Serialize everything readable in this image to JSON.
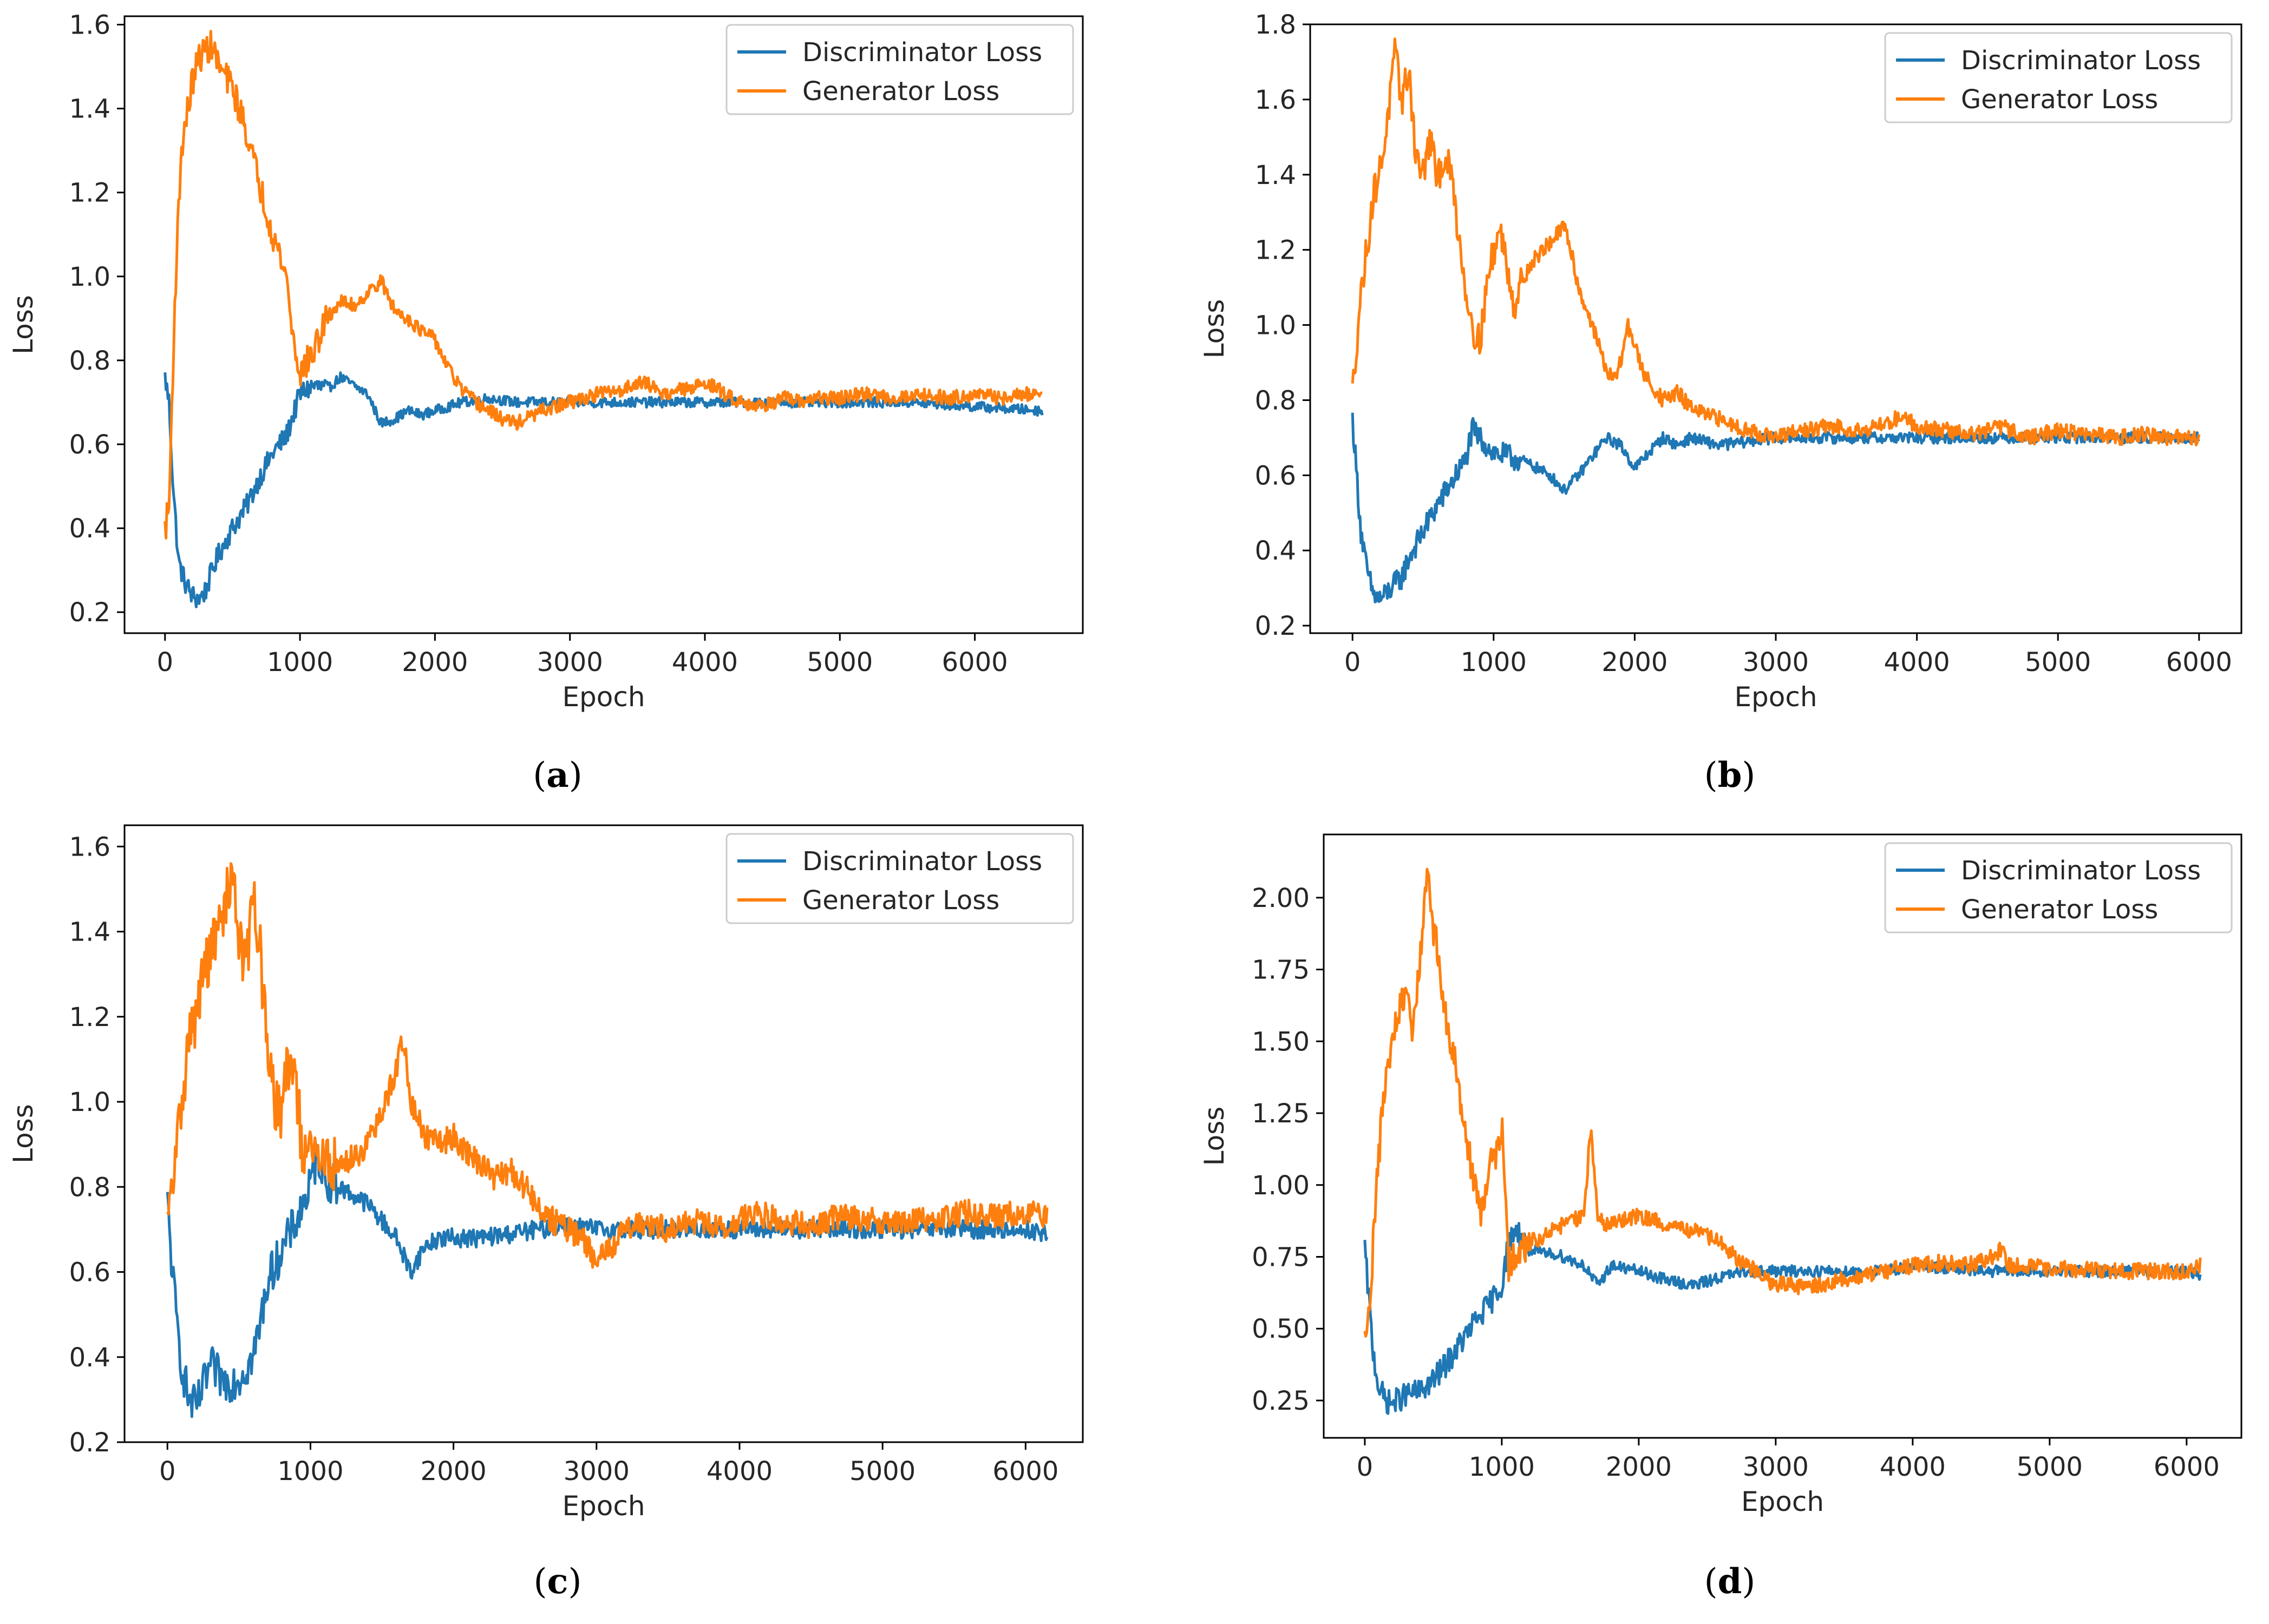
{
  "colors": {
    "discriminator": "#1f77b4",
    "generator": "#ff7f0e",
    "axis": "#000000",
    "legend_border": "#cccccc"
  },
  "chart_data": [
    {
      "type": "line",
      "panel": "a",
      "caption_letter": "a",
      "xlabel": "Epoch",
      "ylabel": "Loss",
      "xlim": [
        -300,
        6800
      ],
      "ylim": [
        0.15,
        1.62
      ],
      "xticks": [
        0,
        1000,
        2000,
        3000,
        4000,
        5000,
        6000
      ],
      "xtick_labels": [
        "0",
        "1000",
        "2000",
        "3000",
        "4000",
        "5000",
        "6000"
      ],
      "yticks": [
        0.2,
        0.4,
        0.6,
        0.8,
        1.0,
        1.2,
        1.4,
        1.6
      ],
      "ytick_labels": [
        "0.2",
        "0.4",
        "0.6",
        "0.8",
        "1.0",
        "1.2",
        "1.4",
        "1.6"
      ],
      "legend_position": "top-right",
      "noise": 0.012,
      "series": [
        {
          "name": "Discriminator Loss",
          "color_key": "discriminator",
          "x": [
            0,
            30,
            60,
            100,
            150,
            200,
            250,
            300,
            350,
            400,
            500,
            600,
            700,
            800,
            900,
            1000,
            1100,
            1200,
            1300,
            1400,
            1500,
            1600,
            1700,
            1800,
            1900,
            2000,
            2200,
            2400,
            2600,
            2800,
            3000,
            3500,
            4000,
            4500,
            5000,
            5500,
            6000,
            6500
          ],
          "values": [
            0.76,
            0.7,
            0.5,
            0.32,
            0.27,
            0.24,
            0.23,
            0.25,
            0.3,
            0.34,
            0.4,
            0.45,
            0.52,
            0.58,
            0.62,
            0.72,
            0.74,
            0.73,
            0.76,
            0.74,
            0.72,
            0.65,
            0.66,
            0.68,
            0.67,
            0.68,
            0.7,
            0.71,
            0.7,
            0.7,
            0.7,
            0.7,
            0.7,
            0.7,
            0.7,
            0.7,
            0.69,
            0.68
          ]
        },
        {
          "name": "Generator Loss",
          "color_key": "generator",
          "x": [
            0,
            30,
            60,
            80,
            120,
            160,
            200,
            250,
            300,
            350,
            400,
            500,
            600,
            700,
            800,
            850,
            900,
            950,
            1000,
            1100,
            1200,
            1300,
            1400,
            1500,
            1600,
            1700,
            1800,
            1900,
            2000,
            2100,
            2200,
            2300,
            2400,
            2500,
            2600,
            2800,
            3000,
            3200,
            3400,
            3500,
            3600,
            3700,
            3800,
            3900,
            4000,
            4100,
            4200,
            4300,
            4400,
            4500,
            4600,
            4700,
            4800,
            5000,
            5200,
            5400,
            5600,
            5800,
            6000,
            6200,
            6400,
            6500
          ],
          "values": [
            0.4,
            0.45,
            0.8,
            1.0,
            1.3,
            1.38,
            1.46,
            1.52,
            1.54,
            1.55,
            1.5,
            1.45,
            1.35,
            1.22,
            1.1,
            1.05,
            1.0,
            0.85,
            0.77,
            0.82,
            0.9,
            0.94,
            0.93,
            0.96,
            0.99,
            0.92,
            0.9,
            0.87,
            0.85,
            0.78,
            0.73,
            0.7,
            0.68,
            0.66,
            0.65,
            0.68,
            0.7,
            0.72,
            0.73,
            0.75,
            0.74,
            0.72,
            0.73,
            0.73,
            0.75,
            0.73,
            0.71,
            0.7,
            0.69,
            0.7,
            0.71,
            0.7,
            0.71,
            0.71,
            0.72,
            0.71,
            0.72,
            0.71,
            0.72,
            0.71,
            0.72,
            0.72
          ]
        }
      ]
    },
    {
      "type": "line",
      "panel": "b",
      "caption_letter": "b",
      "xlabel": "Epoch",
      "ylabel": "Loss",
      "xlim": [
        -300,
        6300
      ],
      "ylim": [
        0.18,
        1.8
      ],
      "xticks": [
        0,
        1000,
        2000,
        3000,
        4000,
        5000,
        6000
      ],
      "xtick_labels": [
        "0",
        "1000",
        "2000",
        "3000",
        "4000",
        "5000",
        "6000"
      ],
      "yticks": [
        0.2,
        0.4,
        0.6,
        0.8,
        1.0,
        1.2,
        1.4,
        1.6,
        1.8
      ],
      "ytick_labels": [
        "0.2",
        "0.4",
        "0.6",
        "0.8",
        "1.0",
        "1.2",
        "1.4",
        "1.6",
        "1.8"
      ],
      "legend_position": "top-right",
      "noise": 0.015,
      "series": [
        {
          "name": "Discriminator Loss",
          "color_key": "discriminator",
          "x": [
            0,
            30,
            60,
            100,
            150,
            200,
            250,
            300,
            350,
            400,
            500,
            600,
            700,
            800,
            850,
            900,
            1000,
            1100,
            1200,
            1300,
            1400,
            1500,
            1600,
            1700,
            1800,
            1900,
            2000,
            2100,
            2200,
            2300,
            2400,
            2500,
            2600,
            2800,
            3000,
            3500,
            4000,
            4500,
            5000,
            5500,
            6000
          ],
          "values": [
            0.75,
            0.6,
            0.45,
            0.35,
            0.28,
            0.27,
            0.29,
            0.31,
            0.33,
            0.38,
            0.45,
            0.52,
            0.58,
            0.64,
            0.72,
            0.7,
            0.66,
            0.65,
            0.64,
            0.62,
            0.6,
            0.56,
            0.6,
            0.65,
            0.7,
            0.68,
            0.62,
            0.66,
            0.7,
            0.68,
            0.7,
            0.69,
            0.68,
            0.69,
            0.7,
            0.7,
            0.7,
            0.7,
            0.7,
            0.7,
            0.7
          ]
        },
        {
          "name": "Generator Loss",
          "color_key": "generator",
          "x": [
            0,
            50,
            100,
            150,
            200,
            250,
            300,
            350,
            400,
            450,
            500,
            550,
            600,
            650,
            700,
            750,
            800,
            850,
            900,
            950,
            1000,
            1050,
            1100,
            1150,
            1200,
            1300,
            1400,
            1500,
            1550,
            1600,
            1700,
            1800,
            1850,
            1900,
            1950,
            2000,
            2050,
            2100,
            2200,
            2300,
            2400,
            2500,
            2600,
            2800,
            3000,
            3200,
            3400,
            3600,
            3800,
            3900,
            4000,
            4200,
            4400,
            4600,
            4800,
            5000,
            5200,
            5400,
            5600,
            5800,
            6000
          ],
          "values": [
            0.82,
            1.05,
            1.2,
            1.35,
            1.42,
            1.55,
            1.72,
            1.6,
            1.68,
            1.45,
            1.4,
            1.5,
            1.38,
            1.45,
            1.4,
            1.25,
            1.1,
            1.0,
            0.95,
            1.1,
            1.2,
            1.25,
            1.15,
            1.05,
            1.12,
            1.18,
            1.22,
            1.26,
            1.2,
            1.1,
            1.0,
            0.88,
            0.85,
            0.9,
            1.0,
            0.95,
            0.88,
            0.85,
            0.8,
            0.82,
            0.78,
            0.76,
            0.75,
            0.72,
            0.7,
            0.72,
            0.73,
            0.72,
            0.74,
            0.76,
            0.73,
            0.72,
            0.71,
            0.73,
            0.7,
            0.72,
            0.71,
            0.7,
            0.71,
            0.7,
            0.7
          ]
        }
      ]
    },
    {
      "type": "line",
      "panel": "c",
      "caption_letter": "c",
      "xlabel": "Epoch",
      "ylabel": "Loss",
      "xlim": [
        -300,
        6400
      ],
      "ylim": [
        0.2,
        1.65
      ],
      "xticks": [
        0,
        1000,
        2000,
        3000,
        4000,
        5000,
        6000
      ],
      "xtick_labels": [
        "0",
        "1000",
        "2000",
        "3000",
        "4000",
        "5000",
        "6000"
      ],
      "yticks": [
        0.2,
        0.4,
        0.6,
        0.8,
        1.0,
        1.2,
        1.4,
        1.6
      ],
      "ytick_labels": [
        "0.2",
        "0.4",
        "0.6",
        "0.8",
        "1.0",
        "1.2",
        "1.4",
        "1.6"
      ],
      "legend_position": "top-right",
      "noise": 0.022,
      "series": [
        {
          "name": "Discriminator Loss",
          "color_key": "discriminator",
          "x": [
            0,
            30,
            60,
            100,
            150,
            200,
            250,
            300,
            400,
            500,
            600,
            650,
            700,
            800,
            900,
            1000,
            1050,
            1100,
            1200,
            1300,
            1400,
            1500,
            1600,
            1700,
            1800,
            1900,
            2000,
            2200,
            2400,
            2600,
            2800,
            3000,
            3500,
            4000,
            4500,
            5000,
            5500,
            6000,
            6150
          ],
          "values": [
            0.76,
            0.62,
            0.5,
            0.38,
            0.3,
            0.28,
            0.33,
            0.38,
            0.34,
            0.35,
            0.4,
            0.48,
            0.58,
            0.65,
            0.72,
            0.8,
            0.88,
            0.82,
            0.8,
            0.78,
            0.76,
            0.72,
            0.68,
            0.6,
            0.66,
            0.68,
            0.68,
            0.68,
            0.69,
            0.7,
            0.71,
            0.7,
            0.7,
            0.7,
            0.7,
            0.7,
            0.7,
            0.7,
            0.69
          ]
        },
        {
          "name": "Generator Loss",
          "color_key": "generator",
          "x": [
            0,
            50,
            100,
            150,
            200,
            250,
            300,
            350,
            400,
            450,
            500,
            550,
            600,
            650,
            700,
            750,
            800,
            850,
            900,
            950,
            1000,
            1100,
            1200,
            1300,
            1400,
            1500,
            1600,
            1650,
            1700,
            1800,
            1900,
            2000,
            2100,
            2200,
            2300,
            2400,
            2500,
            2600,
            2700,
            2800,
            2900,
            3000,
            3100,
            3200,
            3300,
            3500,
            3700,
            3900,
            4100,
            4300,
            4500,
            4700,
            5000,
            5300,
            5600,
            5800,
            6000,
            6150
          ],
          "values": [
            0.7,
            0.85,
            1.0,
            1.15,
            1.2,
            1.3,
            1.35,
            1.4,
            1.45,
            1.55,
            1.4,
            1.3,
            1.5,
            1.35,
            1.1,
            1.0,
            0.98,
            1.1,
            1.05,
            0.85,
            0.88,
            0.86,
            0.85,
            0.87,
            0.9,
            0.97,
            1.08,
            1.15,
            1.0,
            0.92,
            0.9,
            0.92,
            0.88,
            0.85,
            0.82,
            0.84,
            0.8,
            0.75,
            0.72,
            0.7,
            0.68,
            0.62,
            0.66,
            0.7,
            0.72,
            0.7,
            0.72,
            0.7,
            0.74,
            0.72,
            0.71,
            0.73,
            0.72,
            0.72,
            0.74,
            0.73,
            0.74,
            0.73
          ]
        }
      ]
    },
    {
      "type": "line",
      "panel": "d",
      "caption_letter": "d",
      "xlabel": "Epoch",
      "ylabel": "Loss",
      "xlim": [
        -300,
        6400
      ],
      "ylim": [
        0.12,
        2.22
      ],
      "xticks": [
        0,
        1000,
        2000,
        3000,
        4000,
        5000,
        6000
      ],
      "xtick_labels": [
        "0",
        "1000",
        "2000",
        "3000",
        "4000",
        "5000",
        "6000"
      ],
      "yticks": [
        0.25,
        0.5,
        0.75,
        1.0,
        1.25,
        1.5,
        1.75,
        2.0
      ],
      "ytick_labels": [
        "0.25",
        "0.50",
        "0.75",
        "1.00",
        "1.25",
        "1.50",
        "1.75",
        "2.00"
      ],
      "legend_position": "top-right",
      "noise": 0.02,
      "series": [
        {
          "name": "Discriminator Loss",
          "color_key": "discriminator",
          "x": [
            0,
            30,
            60,
            100,
            150,
            200,
            300,
            400,
            500,
            600,
            700,
            800,
            900,
            1000,
            1050,
            1100,
            1200,
            1300,
            1400,
            1500,
            1600,
            1700,
            1800,
            2000,
            2200,
            2400,
            2600,
            2800,
            3000,
            3200,
            3400,
            3600,
            3800,
            4000,
            4500,
            5000,
            5500,
            6000,
            6100
          ],
          "values": [
            0.78,
            0.6,
            0.42,
            0.3,
            0.25,
            0.24,
            0.27,
            0.28,
            0.32,
            0.38,
            0.45,
            0.52,
            0.58,
            0.65,
            0.8,
            0.85,
            0.78,
            0.76,
            0.76,
            0.74,
            0.72,
            0.65,
            0.72,
            0.7,
            0.67,
            0.65,
            0.68,
            0.7,
            0.7,
            0.7,
            0.7,
            0.7,
            0.7,
            0.72,
            0.7,
            0.7,
            0.7,
            0.7,
            0.69
          ]
        },
        {
          "name": "Generator Loss",
          "color_key": "generator",
          "x": [
            0,
            50,
            100,
            150,
            200,
            250,
            300,
            350,
            400,
            450,
            500,
            550,
            600,
            650,
            700,
            750,
            800,
            850,
            900,
            950,
            1000,
            1050,
            1100,
            1200,
            1300,
            1400,
            1500,
            1600,
            1650,
            1700,
            1800,
            1900,
            2000,
            2100,
            2200,
            2300,
            2400,
            2500,
            2600,
            2700,
            2800,
            2900,
            3000,
            3100,
            3200,
            3400,
            3600,
            3800,
            4000,
            4200,
            4400,
            4600,
            4650,
            4700,
            5000,
            5500,
            6000,
            6100
          ],
          "values": [
            0.45,
            0.7,
            1.1,
            1.35,
            1.5,
            1.6,
            1.65,
            1.55,
            1.75,
            2.1,
            1.9,
            1.75,
            1.55,
            1.45,
            1.3,
            1.15,
            1.0,
            0.9,
            1.05,
            1.1,
            1.2,
            0.72,
            0.75,
            0.8,
            0.82,
            0.85,
            0.87,
            0.9,
            1.2,
            0.88,
            0.86,
            0.88,
            0.89,
            0.88,
            0.86,
            0.85,
            0.84,
            0.82,
            0.8,
            0.75,
            0.72,
            0.68,
            0.65,
            0.66,
            0.64,
            0.66,
            0.68,
            0.7,
            0.72,
            0.73,
            0.72,
            0.75,
            0.78,
            0.72,
            0.71,
            0.7,
            0.7,
            0.72
          ]
        }
      ]
    }
  ]
}
